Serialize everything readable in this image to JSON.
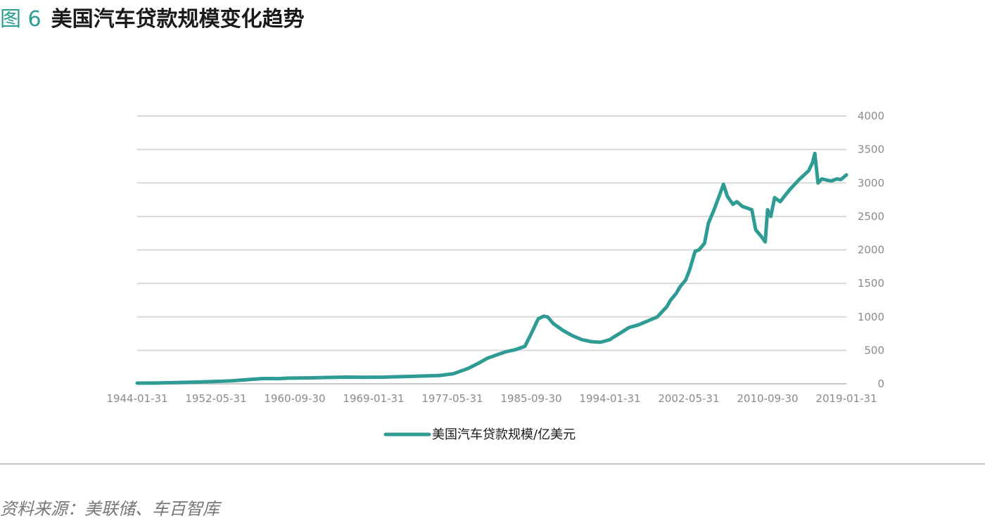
{
  "figure": {
    "label": "图 6",
    "title": "美国汽车贷款规模变化趋势"
  },
  "source": "资料来源：美联储、车百智库",
  "colors": {
    "series": "#2e9b94",
    "grid": "#d9d9d9",
    "axis_text": "#8a8a8a",
    "label": "#2a9d96"
  },
  "chart_data": {
    "type": "line",
    "title": "",
    "xlabel": "",
    "ylabel": "",
    "y_axis_position": "right",
    "grid": "horizontal",
    "legend": "bottom-center",
    "ylim": [
      0,
      4000
    ],
    "yticks": [
      "0",
      "500",
      "1000",
      "1500",
      "2000",
      "2500",
      "3000",
      "3500",
      "4000"
    ],
    "xlim": [
      "1944-01-31",
      "2019-01-31"
    ],
    "xticks": [
      "1944-01-31",
      "1952-05-31",
      "1960-09-30",
      "1969-01-31",
      "1977-05-31",
      "1985-09-30",
      "1994-01-31",
      "2002-05-31",
      "2010-09-30",
      "2019-01-31"
    ],
    "series": [
      {
        "name": "美国汽车贷款规模/亿美元",
        "x": [
          "1944-01-31",
          "1946-01-31",
          "1948-01-31",
          "1950-01-31",
          "1952-01-31",
          "1954-01-31",
          "1956-01-31",
          "1957-06-30",
          "1959-01-31",
          "1960-01-31",
          "1962-01-31",
          "1964-01-31",
          "1966-01-31",
          "1968-01-31",
          "1970-01-31",
          "1972-01-31",
          "1974-01-31",
          "1976-01-31",
          "1977-06-30",
          "1979-01-31",
          "1980-01-31",
          "1981-01-31",
          "1982-01-31",
          "1983-01-31",
          "1984-01-31",
          "1985-01-31",
          "1985-09-30",
          "1986-06-30",
          "1987-01-31",
          "1987-06-30",
          "1988-01-31",
          "1989-01-31",
          "1990-01-31",
          "1991-01-31",
          "1992-01-31",
          "1993-01-31",
          "1994-01-31",
          "1994-06-30",
          "1995-01-31",
          "1996-01-31",
          "1997-01-31",
          "1998-01-31",
          "1999-01-31",
          "2000-01-31",
          "2000-06-30",
          "2001-01-31",
          "2001-06-30",
          "2002-01-31",
          "2002-06-30",
          "2003-01-31",
          "2003-06-30",
          "2004-01-31",
          "2004-06-30",
          "2005-01-31",
          "2006-01-31",
          "2006-06-30",
          "2007-01-31",
          "2007-06-30",
          "2008-01-31",
          "2009-01-31",
          "2009-06-30",
          "2010-01-31",
          "2010-06-30",
          "2010-09-30",
          "2011-01-31",
          "2011-06-30",
          "2012-01-31",
          "2013-01-31",
          "2014-01-31",
          "2015-01-31",
          "2015-06-30",
          "2015-09-30",
          "2016-01-31",
          "2016-06-30",
          "2017-01-31",
          "2017-06-30",
          "2018-01-31",
          "2018-06-30",
          "2019-01-31"
        ],
        "values": [
          10,
          12,
          18,
          25,
          35,
          45,
          65,
          80,
          78,
          85,
          88,
          95,
          100,
          98,
          100,
          108,
          115,
          125,
          150,
          230,
          300,
          380,
          430,
          480,
          510,
          560,
          750,
          970,
          1010,
          1000,
          900,
          800,
          720,
          660,
          630,
          620,
          660,
          700,
          750,
          840,
          880,
          940,
          1000,
          1150,
          1250,
          1350,
          1450,
          1550,
          1700,
          1980,
          2000,
          2100,
          2400,
          2600,
          2980,
          2800,
          2680,
          2720,
          2650,
          2600,
          2300,
          2200,
          2120,
          2600,
          2500,
          2780,
          2720,
          2900,
          3050,
          3180,
          3300,
          3440,
          3000,
          3060,
          3040,
          3030,
          3060,
          3050,
          3120
        ]
      }
    ]
  }
}
